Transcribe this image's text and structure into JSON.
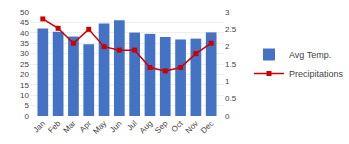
{
  "chart_data": {
    "type": "bar",
    "categories": [
      "Jan",
      "Feb",
      "Mar",
      "Apr",
      "May",
      "Jun",
      "Jul",
      "Aug",
      "Sep",
      "Oct",
      "Nov",
      "Dec"
    ],
    "series": [
      {
        "name": "Avg Temp.",
        "type": "bar",
        "color": "#4472C4",
        "values": [
          42.1,
          40.5,
          38.2,
          34.5,
          44.5,
          46,
          40.1,
          39.5,
          38,
          36.8,
          37.2,
          40.2
        ]
      },
      {
        "name": "Precipitations",
        "type": "line",
        "color": "#CC0000",
        "marker": "square",
        "axis": "y2",
        "values": [
          2.8,
          2.53,
          2.1,
          2.5,
          2,
          1.9,
          1.9,
          1.4,
          1.3,
          1.4,
          1.8,
          2.1
        ]
      }
    ],
    "ylim": [
      0,
      50
    ],
    "yticks": [
      0,
      5,
      10,
      15,
      20,
      25,
      30,
      35,
      40,
      45,
      50
    ],
    "y2lim": [
      0,
      3
    ],
    "y2ticks": [
      0,
      0.5,
      1,
      1.5,
      2,
      2.5,
      3
    ],
    "grid": true,
    "legend": "right"
  }
}
